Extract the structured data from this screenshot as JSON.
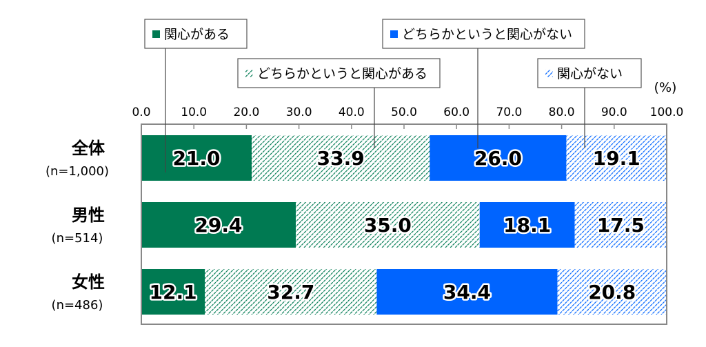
{
  "chart_data": {
    "type": "bar",
    "orientation": "horizontal",
    "stacked": true,
    "unit_label": "(%)",
    "xlim": [
      0,
      100
    ],
    "x_ticks": [
      "0.0",
      "10.0",
      "20.0",
      "30.0",
      "40.0",
      "50.0",
      "60.0",
      "70.0",
      "80.0",
      "90.0",
      "100.0"
    ],
    "categories": [
      {
        "label": "全体",
        "n": "(n=1,000)"
      },
      {
        "label": "男性",
        "n": "(n=514)"
      },
      {
        "label": "女性",
        "n": "(n=486)"
      }
    ],
    "series": [
      {
        "name": "関心がある",
        "color": "#007a52",
        "pattern": "solid",
        "values": [
          21.0,
          29.4,
          12.1
        ]
      },
      {
        "name": "どちらかというと関心がある",
        "color": "#007a52",
        "pattern": "hatch",
        "values": [
          33.9,
          35.0,
          32.7
        ]
      },
      {
        "name": "どちらかというと関心がない",
        "color": "#0064ff",
        "pattern": "solid",
        "values": [
          26.0,
          18.1,
          34.4
        ]
      },
      {
        "name": "関心がない",
        "color": "#0064ff",
        "pattern": "hatch",
        "values": [
          19.1,
          17.5,
          20.8
        ]
      }
    ],
    "legend_placement": "top (callouts)"
  }
}
